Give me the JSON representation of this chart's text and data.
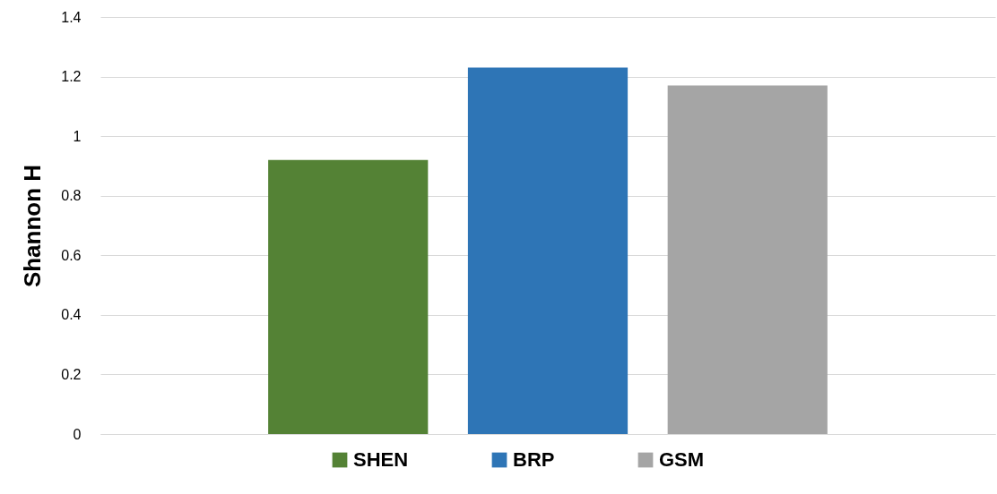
{
  "chart_data": {
    "type": "bar",
    "ylabel": "Shannon H",
    "categories": [
      null
    ],
    "series": [
      {
        "name": "SHEN",
        "color": "#548235",
        "values": [
          0.92
        ]
      },
      {
        "name": "BRP",
        "color": "#2e75b6",
        "values": [
          1.23
        ]
      },
      {
        "name": "GSM",
        "color": "#a5a5a5",
        "values": [
          1.17
        ]
      }
    ],
    "ylim": [
      0,
      1.4
    ],
    "yticks": [
      0,
      0.2,
      0.4,
      0.6,
      0.8,
      1,
      1.2,
      1.4
    ],
    "grid": "y",
    "legend": "bottom",
    "tick_labels": "y"
  }
}
